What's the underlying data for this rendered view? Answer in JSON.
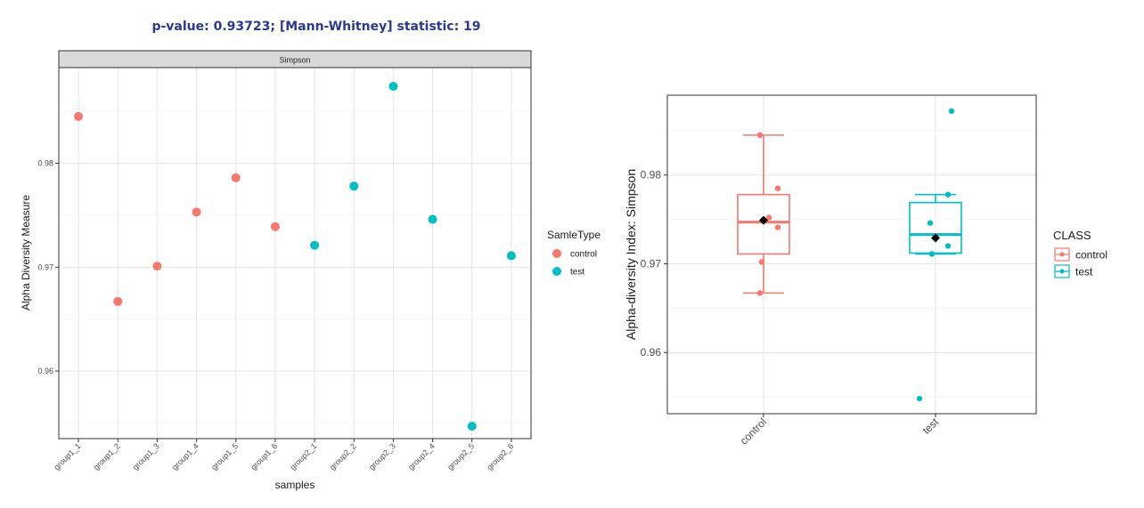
{
  "header": {
    "stat_title": "p-value: 0.93723; [Mann-Whitney] statistic: 19"
  },
  "chart_data": [
    {
      "type": "scatter",
      "facet_label": "Simpson",
      "title": "",
      "xlabel": "samples",
      "ylabel": "Alpha Diversity Measure",
      "categories": [
        "group1_1",
        "group1_2",
        "group1_3",
        "group1_4",
        "group1_5",
        "group1_6",
        "group2_1",
        "group2_2",
        "group2_3",
        "group2_4",
        "group2_5",
        "group2_6"
      ],
      "ylim": [
        0.9535,
        0.9892
      ],
      "yticks": [
        0.96,
        0.97,
        0.98
      ],
      "ytick_labels": [
        "0.96",
        "0.97",
        "0.98"
      ],
      "legend": {
        "title": "SamleType",
        "entries": [
          "control",
          "test"
        ],
        "placement": "right"
      },
      "colors": {
        "control": "#f8766d",
        "test": "#00bfc4"
      },
      "series": [
        {
          "name": "control",
          "x": [
            "group1_1",
            "group1_2",
            "group1_3",
            "group1_4",
            "group1_5",
            "group1_6"
          ],
          "values": [
            0.9845,
            0.9667,
            0.9701,
            0.9753,
            0.9786,
            0.9739
          ]
        },
        {
          "name": "test",
          "x": [
            "group2_1",
            "group2_2",
            "group2_3",
            "group2_4",
            "group2_5",
            "group2_6"
          ],
          "values": [
            0.9721,
            0.9778,
            0.9874,
            0.9746,
            0.9547,
            0.9711
          ]
        }
      ],
      "grid": true
    },
    {
      "type": "box",
      "title": "",
      "xlabel": "",
      "ylabel": "Alpha-diversity Index: Simpson",
      "categories": [
        "control",
        "test"
      ],
      "ylim": [
        0.9531,
        0.989
      ],
      "yticks": [
        0.96,
        0.97,
        0.98
      ],
      "ytick_labels": [
        "0.96",
        "0.97",
        "0.98"
      ],
      "legend": {
        "title": "CLASS",
        "entries": [
          "control",
          "test"
        ],
        "placement": "right"
      },
      "colors": {
        "control": "#f8766d",
        "test": "#00bfc4",
        "mean": "#000000"
      },
      "boxes": [
        {
          "name": "control",
          "whisker_low": 0.9667,
          "q1": 0.9711,
          "median": 0.9747,
          "q3": 0.9778,
          "whisker_high": 0.9845,
          "mean": 0.9749,
          "points": [
            0.9845,
            0.9785,
            0.9752,
            0.9741,
            0.9702,
            0.9667
          ]
        },
        {
          "name": "test",
          "whisker_low": 0.9711,
          "q1": 0.9712,
          "median": 0.9733,
          "q3": 0.9769,
          "whisker_high": 0.9778,
          "mean": 0.9729,
          "points": [
            0.9872,
            0.9778,
            0.9746,
            0.972,
            0.9711,
            0.9548
          ]
        }
      ],
      "grid": true
    }
  ]
}
